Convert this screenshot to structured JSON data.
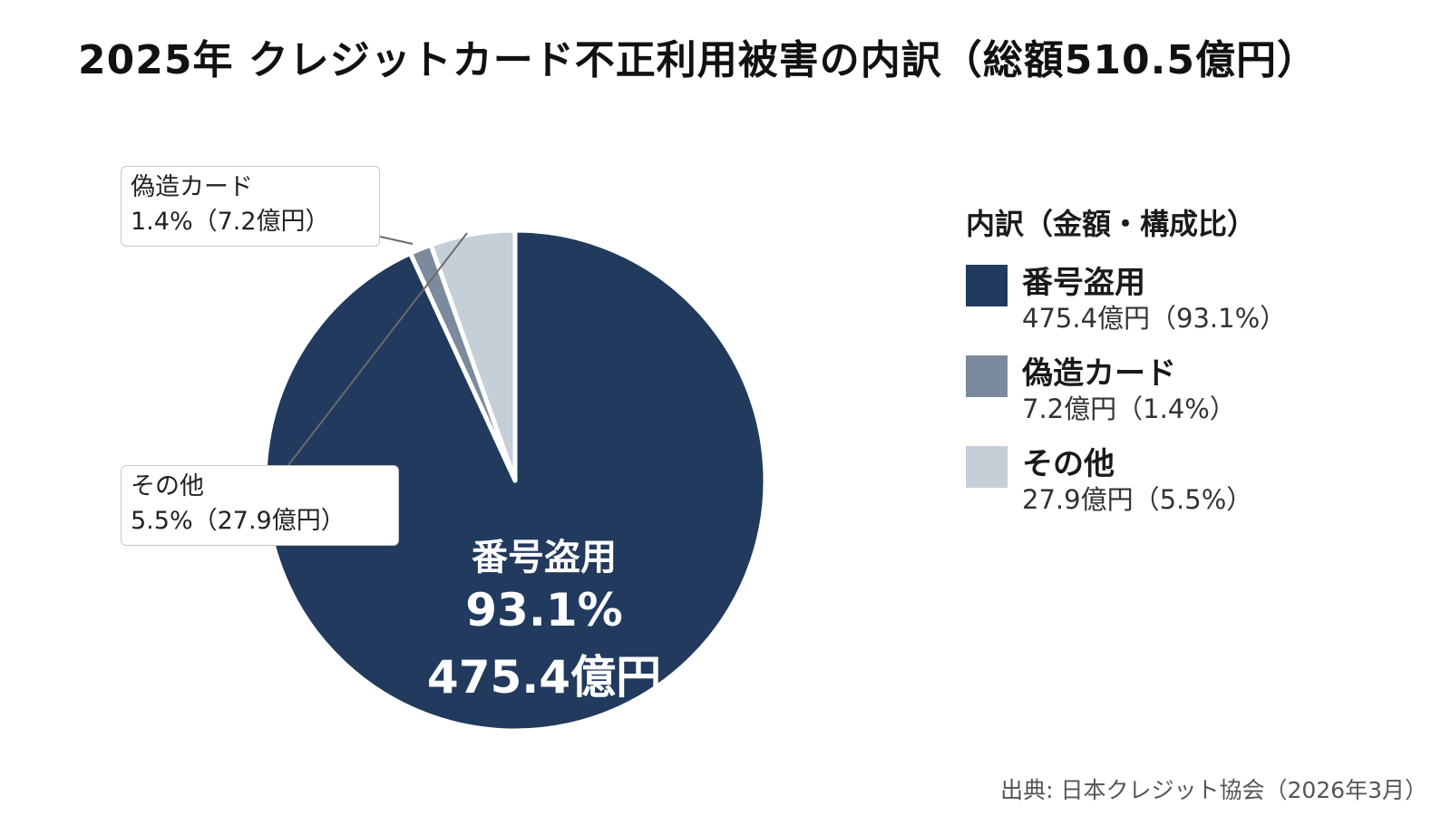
{
  "title": "2025年 クレジットカード不正利用被害の内訳（総額510.5億円）",
  "chart_data": {
    "type": "pie",
    "title": "2025年 クレジットカード不正利用被害の内訳（総額510.5億円）",
    "total": 510.5,
    "unit": "億円",
    "slices": [
      {
        "name": "番号盗用",
        "value": 475.4,
        "percent": 93.1,
        "color": "#213a5e"
      },
      {
        "name": "偽造カード",
        "value": 7.2,
        "percent": 1.4,
        "color": "#7b8a9c"
      },
      {
        "name": "その他",
        "value": 27.9,
        "percent": 5.5,
        "color": "#c6ced8"
      }
    ],
    "inner_label": {
      "name": "番号盗用",
      "percent": "93.1%",
      "amount": "475.4億円"
    },
    "callouts": [
      {
        "name": "偽造カード",
        "detail": "1.4%（7.2億円）"
      },
      {
        "name": "その他",
        "detail": "5.5%（27.9億円）"
      }
    ],
    "legend": {
      "title": "内訳（金額・構成比）",
      "placement": "right",
      "items": [
        {
          "name": "番号盗用",
          "detail": "475.4億円（93.1%）",
          "color": "#213a5e"
        },
        {
          "name": "偽造カード",
          "detail": "7.2億円（1.4%）",
          "color": "#7b8a9c"
        },
        {
          "name": "その他",
          "detail": "27.9億円（5.5%）",
          "color": "#c6ced8"
        }
      ]
    }
  },
  "source": "出典: 日本クレジット協会（2026年3月）"
}
